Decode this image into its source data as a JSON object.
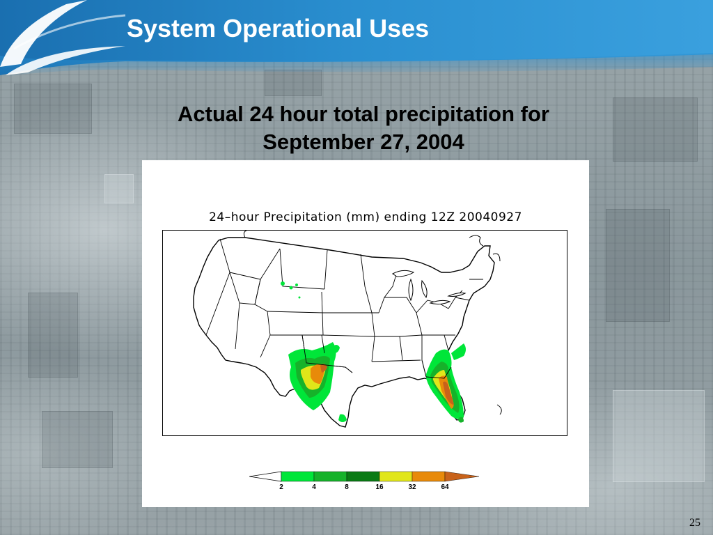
{
  "slide": {
    "title": "System Operational Uses",
    "subtitle_line1": "Actual 24 hour total precipitation for",
    "subtitle_line2": "September 27, 2004",
    "page_number": "25"
  },
  "figure": {
    "map_title": "24–hour Precipitation (mm) ending 12Z 20040927",
    "colorbar": {
      "labels": [
        "2",
        "4",
        "8",
        "16",
        "32",
        "64"
      ],
      "colors": [
        "#ffffff",
        "#00e639",
        "#16b22a",
        "#0a7a14",
        "#e1e61a",
        "#e88a0a",
        "#c8621a"
      ]
    }
  },
  "colors": {
    "header_blue": "#1f7fc4",
    "title_text": "#ffffff"
  }
}
